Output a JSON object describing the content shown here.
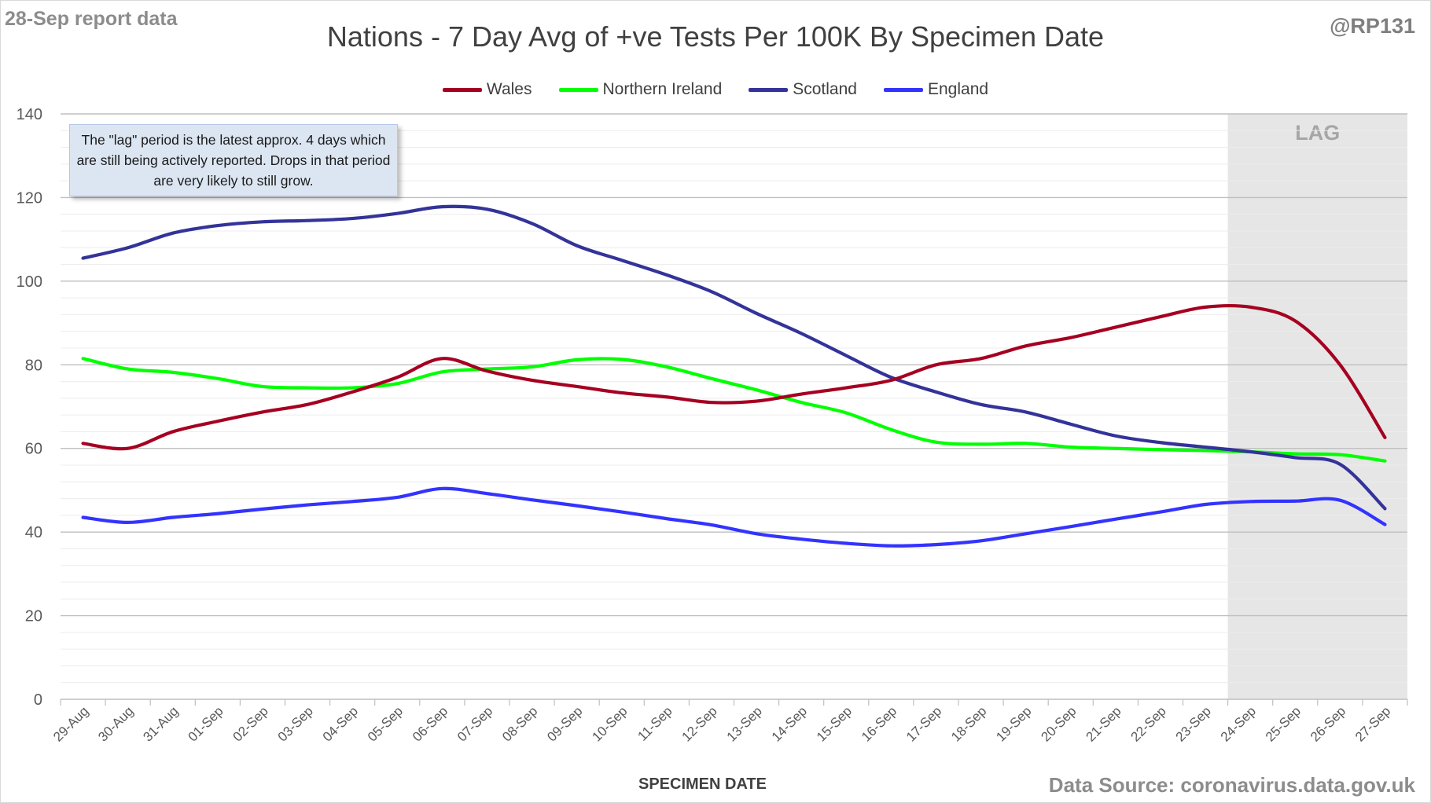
{
  "header": {
    "report_label": "28-Sep report data",
    "handle": "@RP131"
  },
  "footer": {
    "source": "Data Source: coronavirus.data.gov.uk"
  },
  "annotation": {
    "note": "The \"lag\" period is the latest approx. 4 days which are still being actively reported. Drops in that period are very likely to still grow.",
    "lag_label": "LAG"
  },
  "chart_data": {
    "type": "line",
    "title": "Nations - 7 Day Avg of +ve Tests Per 100K By Specimen Date",
    "xlabel": "SPECIMEN DATE",
    "ylabel": "",
    "ylim": [
      0,
      140
    ],
    "yticks": [
      0,
      20,
      40,
      60,
      80,
      100,
      120,
      140
    ],
    "grid": true,
    "legend_position": "top",
    "lag_region": {
      "from": "24-Sep",
      "to": "27-Sep",
      "color": "#e6e6e6"
    },
    "categories": [
      "29-Aug",
      "30-Aug",
      "31-Aug",
      "01-Sep",
      "02-Sep",
      "03-Sep",
      "04-Sep",
      "05-Sep",
      "06-Sep",
      "07-Sep",
      "08-Sep",
      "09-Sep",
      "10-Sep",
      "11-Sep",
      "12-Sep",
      "13-Sep",
      "14-Sep",
      "15-Sep",
      "16-Sep",
      "17-Sep",
      "18-Sep",
      "19-Sep",
      "20-Sep",
      "21-Sep",
      "22-Sep",
      "23-Sep",
      "24-Sep",
      "25-Sep",
      "26-Sep",
      "27-Sep"
    ],
    "series": [
      {
        "name": "Wales",
        "color": "#a50021",
        "values": [
          61.2,
          60.0,
          64.0,
          66.5,
          68.7,
          70.5,
          73.5,
          77.0,
          81.5,
          78.5,
          76.3,
          74.8,
          73.3,
          72.3,
          71.0,
          71.3,
          73.0,
          74.5,
          76.3,
          80.0,
          81.5,
          84.5,
          86.5,
          89.0,
          91.5,
          93.8,
          93.8,
          90.5,
          80.0,
          62.6
        ]
      },
      {
        "name": "Northern Ireland",
        "color": "#00ff00",
        "values": [
          81.5,
          79.0,
          78.2,
          76.7,
          74.8,
          74.5,
          74.5,
          75.5,
          78.3,
          79.0,
          79.5,
          81.2,
          81.3,
          79.5,
          76.7,
          74.0,
          71.0,
          68.5,
          64.5,
          61.5,
          61.0,
          61.2,
          60.3,
          60.0,
          59.7,
          59.5,
          59.2,
          58.7,
          58.5,
          57.0
        ]
      },
      {
        "name": "Scotland",
        "color": "#333399",
        "values": [
          105.5,
          108.0,
          111.5,
          113.3,
          114.2,
          114.5,
          115.0,
          116.2,
          117.8,
          117.2,
          113.8,
          108.5,
          105.0,
          101.5,
          97.5,
          92.3,
          87.5,
          82.2,
          77.0,
          73.5,
          70.5,
          68.7,
          65.8,
          63.0,
          61.4,
          60.3,
          59.2,
          57.8,
          56.2,
          45.6
        ]
      },
      {
        "name": "England",
        "color": "#3333ff",
        "values": [
          43.5,
          42.3,
          43.5,
          44.4,
          45.5,
          46.5,
          47.3,
          48.3,
          50.4,
          49.2,
          47.7,
          46.3,
          44.8,
          43.2,
          41.7,
          39.6,
          38.3,
          37.3,
          36.7,
          37.0,
          37.9,
          39.6,
          41.3,
          43.1,
          44.8,
          46.6,
          47.3,
          47.4,
          47.6,
          41.8
        ]
      }
    ]
  }
}
